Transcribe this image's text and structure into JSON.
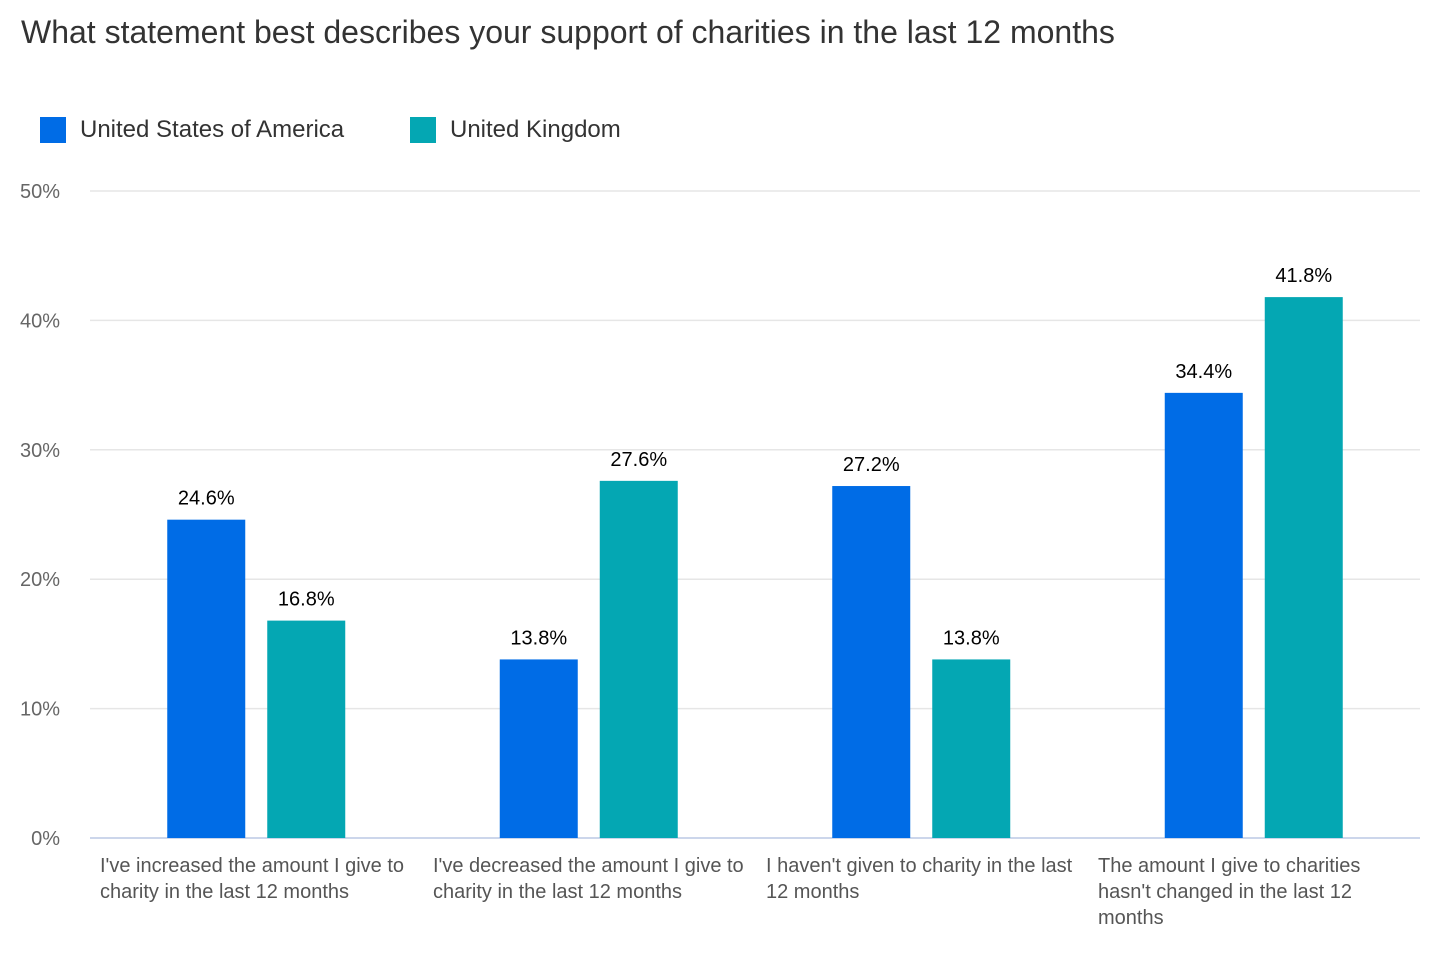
{
  "chart_data": {
    "type": "bar",
    "title": "What statement best describes your support of charities in the last 12 months",
    "categories": [
      "I've increased the amount I give to charity in the last 12 months",
      "I've decreased the amount I give to charity in the last 12 months",
      "I haven't given to charity in the last 12 months",
      "The amount I give to charities hasn't changed in the last 12 months"
    ],
    "series": [
      {
        "name": "United States of America",
        "color": "#006CE6",
        "values": [
          24.6,
          13.8,
          27.2,
          34.4
        ],
        "labels": [
          "24.6%",
          "13.8%",
          "27.2%",
          "34.4%"
        ]
      },
      {
        "name": "United Kingdom",
        "color": "#04A7B3",
        "values": [
          16.8,
          27.6,
          13.8,
          41.8
        ],
        "labels": [
          "16.8%",
          "27.6%",
          "13.8%",
          "41.8%"
        ]
      }
    ],
    "ylim": [
      0,
      50
    ],
    "yticks": [
      "0%",
      "10%",
      "20%",
      "30%",
      "40%",
      "50%"
    ],
    "xlabel": "",
    "ylabel": "",
    "grid": true,
    "legend": "top-left"
  }
}
